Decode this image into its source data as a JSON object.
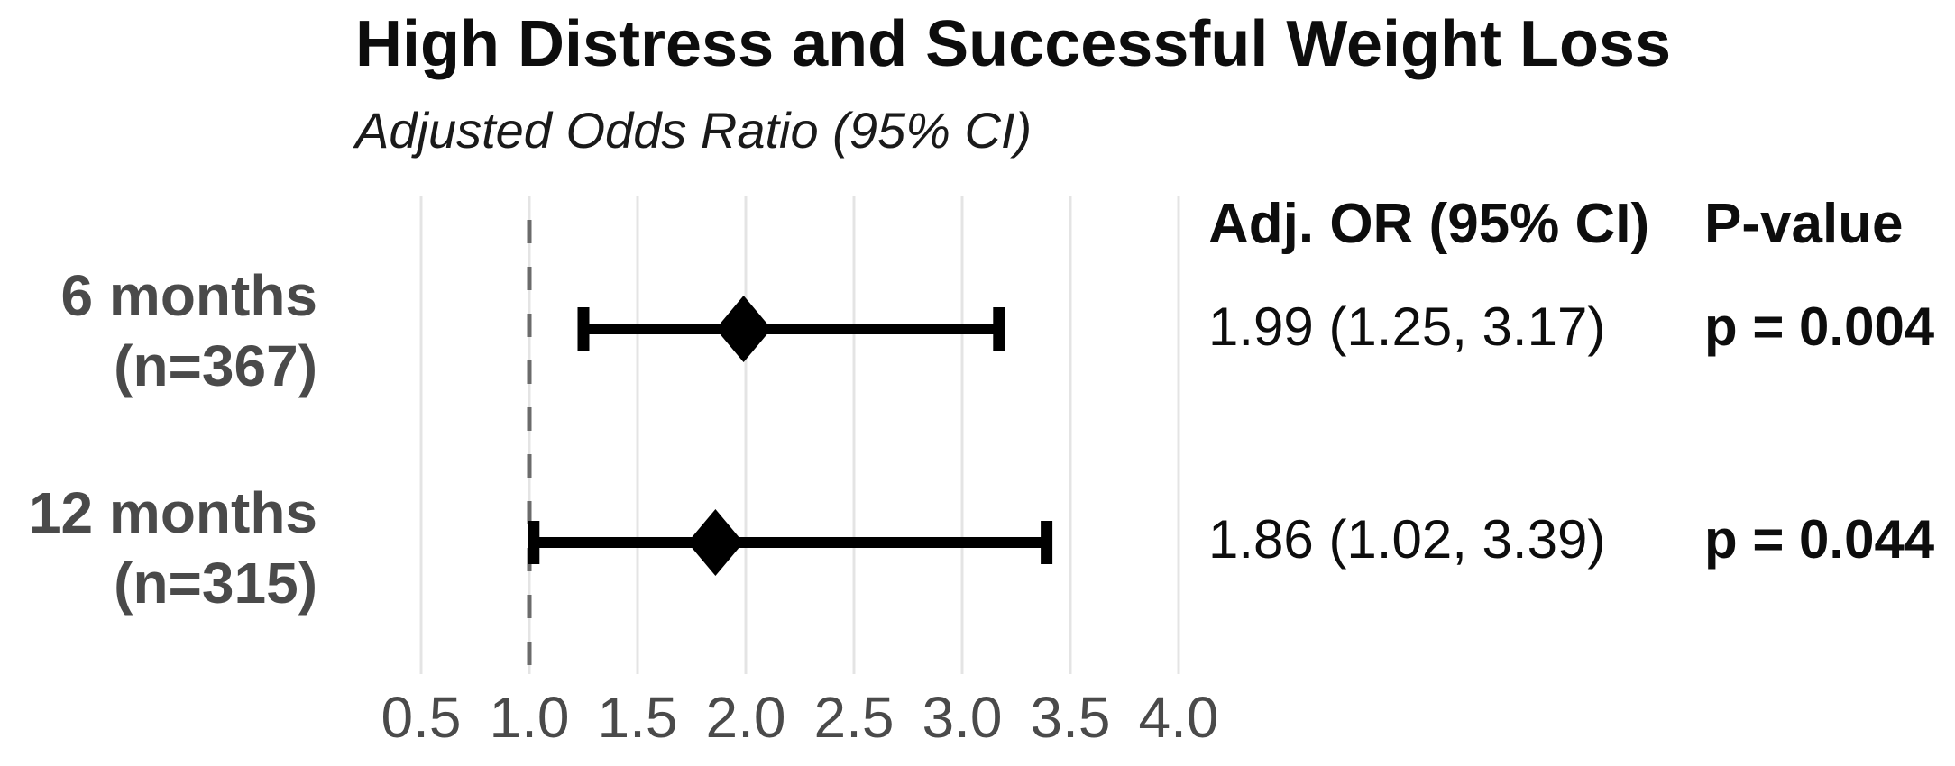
{
  "figure": {
    "title": "High Distress and Successful Weight Loss",
    "subtitle": "Adjusted Odds Ratio (95% CI)"
  },
  "table": {
    "or_header": "Adj. OR (95% CI)",
    "p_header": "P-value"
  },
  "colors": {
    "text_black": "#0d0d0d",
    "label_gray": "#4a4a4a",
    "gridline": "#e4e4e4",
    "reference_line": "#6b6b6b",
    "marker_black": "#000000",
    "background": "#ffffff"
  },
  "chart_data": {
    "type": "scatter",
    "subtype": "forest-plot",
    "title": "High Distress and Successful Weight Loss",
    "subtitle": "Adjusted Odds Ratio (95% CI)",
    "xlabel": "",
    "ylabel": "",
    "xlim": [
      0.25,
      4.25
    ],
    "x_ticks": [
      0.5,
      1.0,
      1.5,
      2.0,
      2.5,
      3.0,
      3.5,
      4.0
    ],
    "x_tick_labels": [
      "0.5",
      "1.0",
      "1.5",
      "2.0",
      "2.5",
      "3.0",
      "3.5",
      "4.0"
    ],
    "reference_line_x": 1.0,
    "grid": "vertical light-gray gridlines at each tick",
    "legend": "none",
    "marker": "black diamond with horizontal CI whiskers",
    "rows": [
      {
        "label_line1": "6 months",
        "label_line2": "(n=367)",
        "n": 367,
        "or": 1.99,
        "ci_low": 1.25,
        "ci_high": 3.17,
        "or_ci_label": "1.99 (1.25, 3.17)",
        "p_value": 0.004,
        "p_label": "p = 0.004"
      },
      {
        "label_line1": "12 months",
        "label_line2": "(n=315)",
        "n": 315,
        "or": 1.86,
        "ci_low": 1.02,
        "ci_high": 3.39,
        "or_ci_label": "1.86 (1.02, 3.39)",
        "p_value": 0.044,
        "p_label": "p = 0.044"
      }
    ]
  }
}
